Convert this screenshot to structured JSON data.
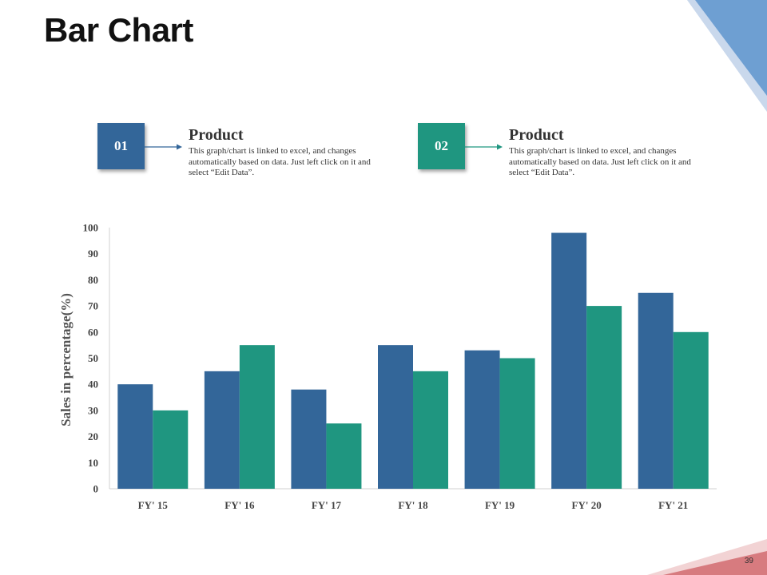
{
  "title": "Bar Chart",
  "page_number": "39",
  "colors": {
    "product1": "#336699",
    "product2": "#1F9680",
    "corner_blue": "#6E9FD2",
    "corner_pink": "#D77B7F"
  },
  "legend": [
    {
      "number": "01",
      "heading": "Product",
      "description": "This graph/chart is linked to excel, and changes automatically  based on data. Just left click on it and select “Edit Data”."
    },
    {
      "number": "02",
      "heading": "Product",
      "description": "This graph/chart is linked to excel, and changes automatically  based on data. Just left click on it and select “Edit Data”."
    }
  ],
  "chart_data": {
    "type": "bar",
    "title": "",
    "xlabel": "",
    "ylabel": "Sales in percentage(%)",
    "categories": [
      "FY' 15",
      "FY' 16",
      "FY' 17",
      "FY' 18",
      "FY' 19",
      "FY' 20",
      "FY' 21"
    ],
    "series": [
      {
        "name": "Product 01",
        "values": [
          40,
          45,
          38,
          55,
          53,
          98,
          75
        ]
      },
      {
        "name": "Product 02",
        "values": [
          30,
          55,
          25,
          45,
          50,
          70,
          60
        ]
      }
    ],
    "ylim": [
      0,
      100
    ],
    "yticks": [
      "0",
      "10",
      "20",
      "30",
      "40",
      "50",
      "60",
      "70",
      "80",
      "90",
      "100"
    ],
    "grid": false
  }
}
